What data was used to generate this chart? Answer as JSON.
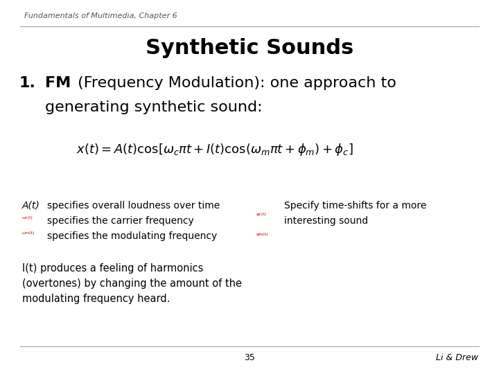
{
  "header_text": "Fundamentals of Multimedia, Chapter 6",
  "title": "Synthetic Sounds",
  "footer_page": "35",
  "footer_right": "Li & Drew",
  "bg_color": "#ffffff",
  "header_color": "#555555",
  "title_color": "#000000",
  "body_color": "#000000",
  "line_color": "#aaaaaa",
  "red_color": "#cc0000",
  "header_fontsize": 8,
  "title_fontsize": 22,
  "point1_fontsize": 16,
  "formula_fontsize": 13,
  "bullet_fontsize": 10,
  "footer_fontsize": 9
}
